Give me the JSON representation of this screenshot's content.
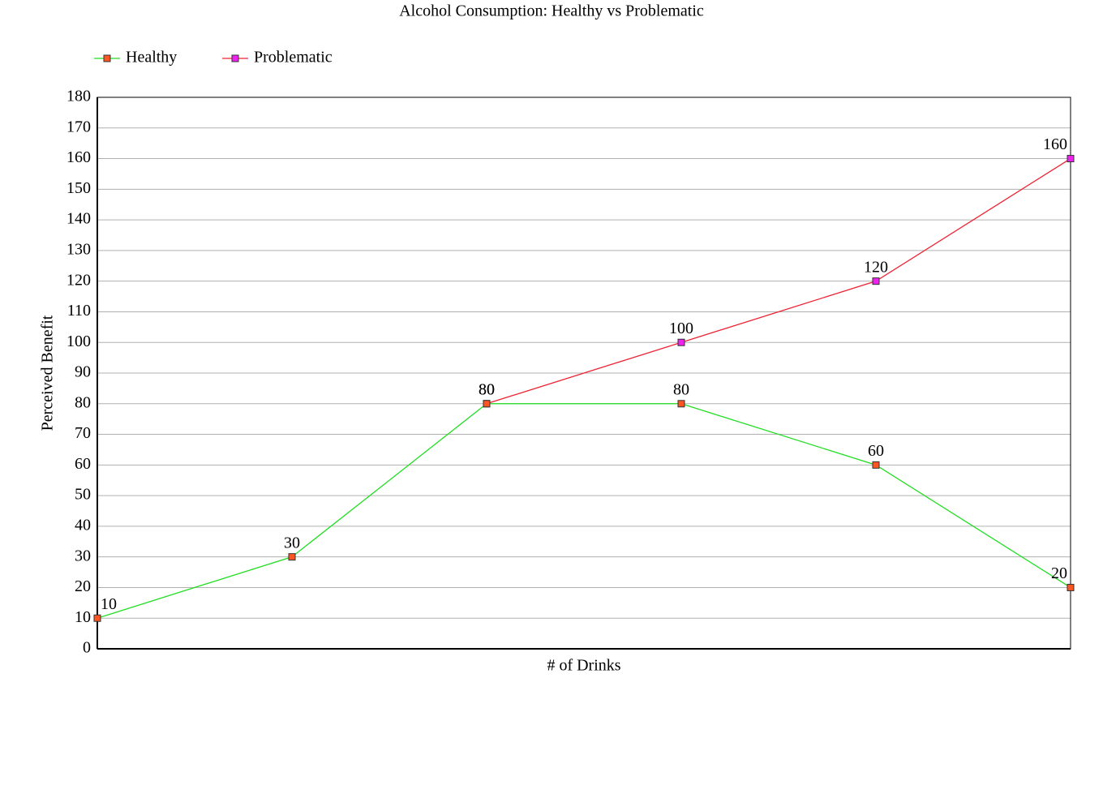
{
  "chart_data": {
    "type": "line",
    "title": "Alcohol Consumption: Healthy vs Problematic",
    "x_label": "# of Drinks",
    "y_label": "Perceived Benefit",
    "categories": [
      null,
      null,
      null,
      null,
      null,
      null
    ],
    "series": [
      {
        "name": "Healthy",
        "color": "#22dd22",
        "marker_color": "#ff5522",
        "values": [
          10,
          30,
          80,
          80,
          60,
          20
        ]
      },
      {
        "name": "Problematic",
        "color": "#ee2233",
        "marker_color": "#ee22ee",
        "values": [
          null,
          null,
          80,
          100,
          120,
          160
        ]
      }
    ],
    "ylim": [
      0,
      180
    ],
    "yticks": [
      0,
      10,
      20,
      30,
      40,
      50,
      60,
      70,
      80,
      90,
      100,
      110,
      120,
      130,
      140,
      150,
      160,
      170,
      180
    ],
    "grid": true,
    "legend": "top-left"
  }
}
